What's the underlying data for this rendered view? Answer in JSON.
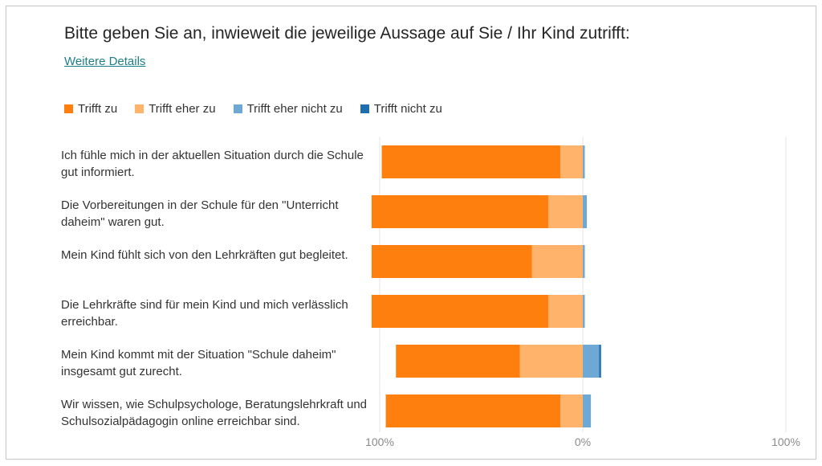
{
  "title": "Bitte geben Sie an, inwieweit die jeweilige Aussage auf Sie / Ihr Kind zutrifft:",
  "details_link": "Weitere Details",
  "chart_data": {
    "type": "bar",
    "orientation": "horizontal-diverging",
    "legend_position": "top-left",
    "grid": true,
    "xlim": [
      -100,
      100
    ],
    "x_ticks": [
      "100%",
      "0%",
      "100%"
    ],
    "series": [
      {
        "name": "Trifft zu",
        "color": "#ff7f0e",
        "values": [
          88,
          87,
          79,
          87,
          61,
          86
        ]
      },
      {
        "name": "Trifft eher zu",
        "color": "#ffb36b",
        "values": [
          11,
          17,
          25,
          17,
          31,
          11
        ]
      },
      {
        "name": "Trifft eher nicht zu",
        "color": "#6ea9d6",
        "values": [
          1,
          2,
          1,
          1,
          8,
          4
        ]
      },
      {
        "name": "Trifft nicht zu",
        "color": "#1f6fb0",
        "values": [
          0,
          0,
          0,
          0,
          1,
          0
        ]
      }
    ],
    "categories": [
      "Ich fühle mich in der aktuellen Situation durch die Schule gut informiert.",
      "Die Vorbereitungen in der Schule für den \"Unterricht daheim\" waren gut.",
      "Mein Kind fühlt sich von den Lehrkräften gut begleitet.",
      "Die Lehrkräfte sind für mein Kind und mich verlässlich erreichbar.",
      "Mein Kind kommt mit der Situation \"Schule daheim\" insgesamt gut zurecht.",
      "Wir wissen, wie Schulpsychologe, Beratungslehrkraft und Schulsozialpädagogin online erreichbar sind."
    ]
  }
}
